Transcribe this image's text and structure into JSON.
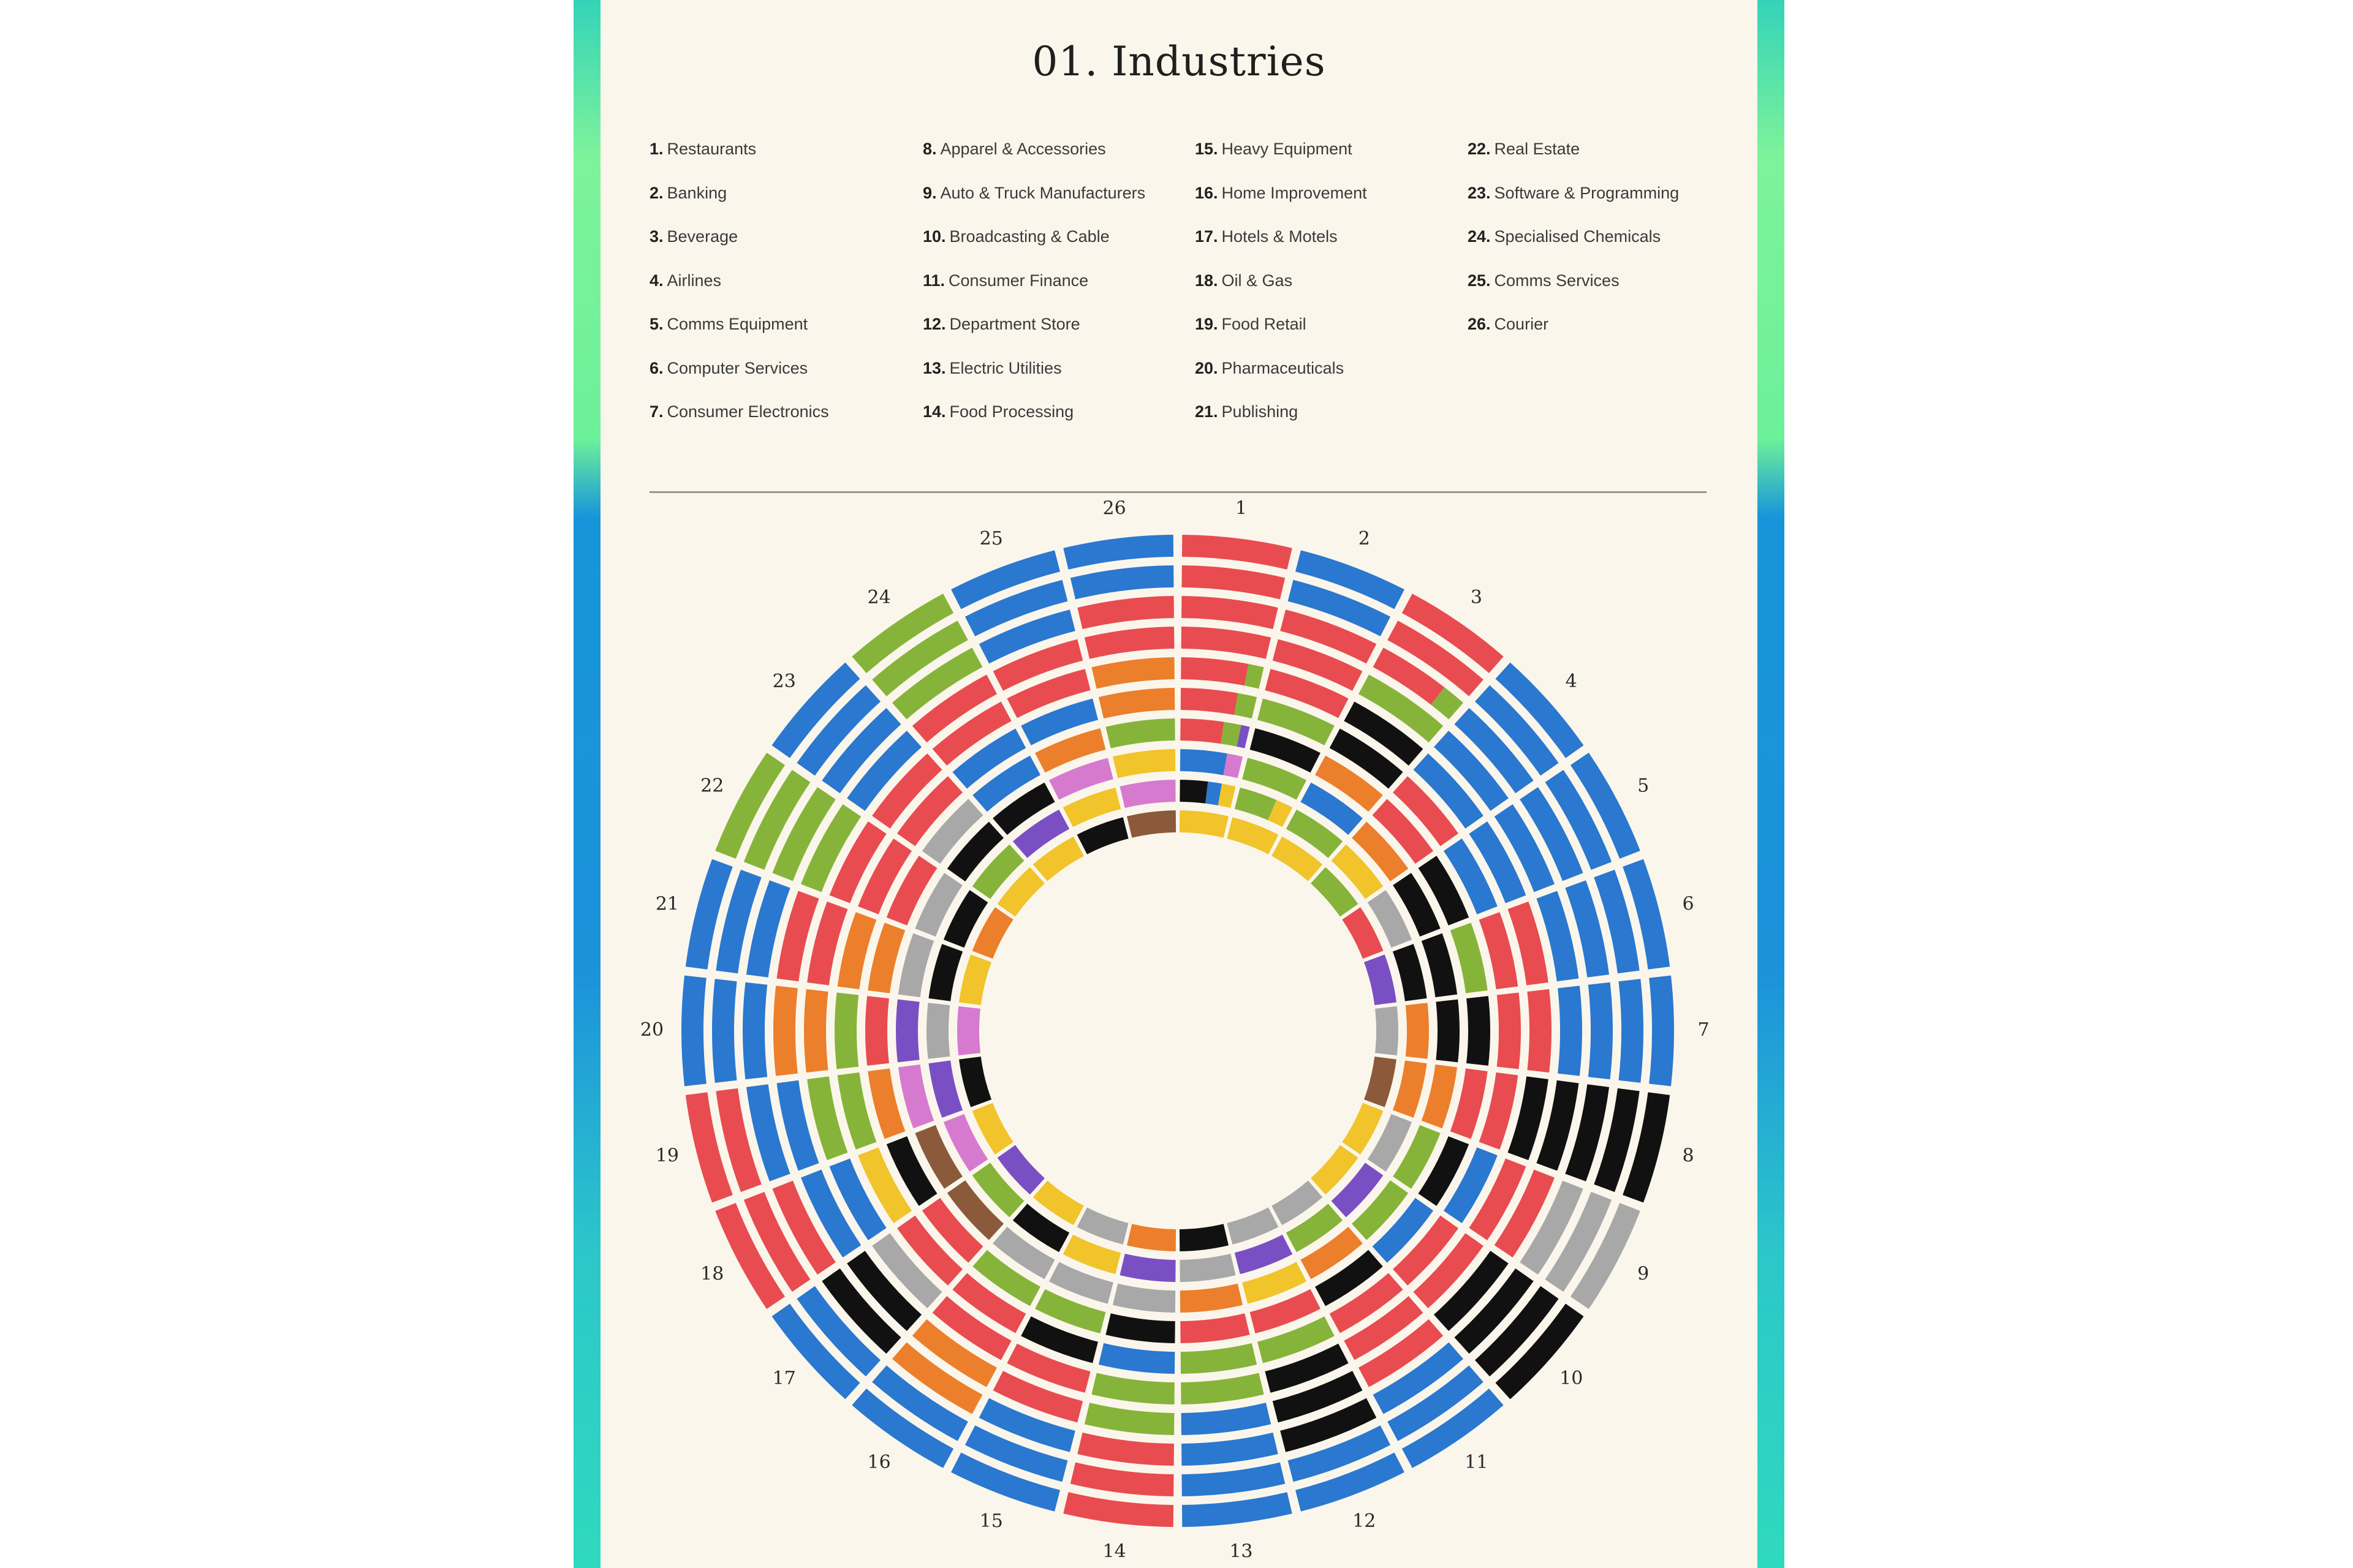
{
  "title": "01. Industries",
  "legend": [
    {
      "num": "1.",
      "label": "Restaurants"
    },
    {
      "num": "2.",
      "label": "Banking"
    },
    {
      "num": "3.",
      "label": "Beverage"
    },
    {
      "num": "4.",
      "label": "Airlines"
    },
    {
      "num": "5.",
      "label": "Comms Equipment"
    },
    {
      "num": "6.",
      "label": "Computer Services"
    },
    {
      "num": "7.",
      "label": "Consumer Electronics"
    },
    {
      "num": "8.",
      "label": "Apparel & Accessories"
    },
    {
      "num": "9.",
      "label": "Auto & Truck Manufacturers"
    },
    {
      "num": "10.",
      "label": "Broadcasting & Cable"
    },
    {
      "num": "11.",
      "label": "Consumer Finance"
    },
    {
      "num": "12.",
      "label": "Department Store"
    },
    {
      "num": "13.",
      "label": "Electric Utilities"
    },
    {
      "num": "14.",
      "label": "Food Processing"
    },
    {
      "num": "15.",
      "label": "Heavy Equipment"
    },
    {
      "num": "16.",
      "label": "Home Improvement"
    },
    {
      "num": "17.",
      "label": "Hotels & Motels"
    },
    {
      "num": "18.",
      "label": "Oil & Gas"
    },
    {
      "num": "19.",
      "label": "Food Retail"
    },
    {
      "num": "20.",
      "label": "Pharmaceuticals"
    },
    {
      "num": "21.",
      "label": "Publishing"
    },
    {
      "num": "22.",
      "label": "Real Estate"
    },
    {
      "num": "23.",
      "label": "Software & Programming"
    },
    {
      "num": "24.",
      "label": "Specialised Chemicals"
    },
    {
      "num": "25.",
      "label": "Comms Services"
    },
    {
      "num": "26.",
      "label": "Courier"
    }
  ],
  "chart_data": {
    "type": "radial-bar",
    "title": "",
    "segment_labels": [
      "1",
      "2",
      "3",
      "4",
      "5",
      "6",
      "7",
      "8",
      "9",
      "10",
      "11",
      "12",
      "13",
      "14",
      "15",
      "16",
      "17",
      "18",
      "19",
      "20",
      "21",
      "22",
      "23",
      "24",
      "25",
      "26"
    ],
    "rings_per_segment": 10,
    "colors": {
      "R": "#e84c50",
      "B": "#2a78cf",
      "G": "#86b43a",
      "O": "#ec7f2b",
      "Y": "#f0c42a",
      "K": "#111111",
      "S": "#a8a8a8",
      "P": "#7a4fc4",
      "M": "#d67ad0",
      "N": "#8b5a3a"
    },
    "segments": [
      {
        "label": "1",
        "rings": [
          "RRRRRRRRRRRRRRRR",
          "RRRRRRRRRRRRRRRR",
          "RRRRRRRRRRRRRRRR",
          "RRRRRRRRRRRRRRRR",
          "RRRRRRRRRRRRRGGG",
          "RRRRRRRRRRRRGGGG",
          "RRRRRRRRRRGGGGPP",
          "BBBBBBBBBBBBMMMM",
          "KKKKKKKKBBBBYYYY",
          "YYYYYYYYYYYYYYYY"
        ]
      },
      {
        "label": "2",
        "rings": [
          "BBBBBBBBBBBBBBBB",
          "BBBBBBBBBBBBBBBB",
          "RRRRRRRRRRRRRRRR",
          "RRRRRRRRRRRRRRRR",
          "RRRRRRRRRRRRRRRR",
          "GGGGGGGGGGGGGGGG",
          "KKKKKKKKKKKKKKKK",
          "GGGGGGGGGGGGGGGG",
          "GGGGGGGGGGGYYYYY",
          "YYYYYYYYYYYYYYYY"
        ]
      },
      {
        "label": "3",
        "rings": [
          "RRRRRRRRRRRRRRRR",
          "RRRRRRRRRRRRRRRR",
          "RRRRRRRRRRRRGGGG",
          "GGGGGGGGGGGGGGGG",
          "KKKKKKKKKKKKKKKK",
          "KKKKKKKKKKKKKKKK",
          "OOOOOOOOOOOOOOOO",
          "BBBBBBBBBBBBBBBB",
          "GGGGGGGGGGGGGGGG",
          "YYYYYYYYYYYYYYYY"
        ]
      },
      {
        "label": "4",
        "rings": [
          "BBBBBBBBBBBBBBBB",
          "BBBBBBBBBBBBBBBB",
          "BBBBBBBBBBBBBBBB",
          "BBBBBBBBBBBBBBBB",
          "BBBBBBBBBBBBBBBB",
          "RRRRRRRRRRRRRRRR",
          "RRRRRRRRRRRRRRRR",
          "OOOOOOOOOOOOOOOO",
          "YYYYYYYYYYYYYYYY",
          "GGGGGGGGGGGGGGGG"
        ]
      },
      {
        "label": "5",
        "rings": [
          "BBBBBBBBBBBBBBBB",
          "BBBBBBBBBBBBBBBB",
          "BBBBBBBBBBBBBBBB",
          "BBBBBBBBBBBBBBBB",
          "BBBBBBBBBBBBBBBB",
          "BBBBBBBBBBBBBBBB",
          "KKKKKKKKKKKKKKKK",
          "KKKKKKKKKKKKKKKK",
          "SSSSSSSSSSSSSSSS",
          "RRRRRRRRRRRRRRRR"
        ]
      },
      {
        "label": "6",
        "rings": [
          "BBBBBBBBBBBBBBBB",
          "BBBBBBBBBBBBBBBB",
          "BBBBBBBBBBBBBBBB",
          "BBBBBBBBBBBBBBBB",
          "RRRRRRRRRRRRRRRR",
          "RRRRRRRRRRRRRRRR",
          "GGGGGGGGGGGGGGGG",
          "KKKKKKKKKKKKKKKK",
          "KKKKKKKKKKKKKKKK",
          "PPPPPPPPPPPPPPPP"
        ]
      },
      {
        "label": "7",
        "rings": [
          "BBBBBBBBBBBBBBBB",
          "BBBBBBBBBBBBBBBB",
          "BBBBBBBBBBBBBBBB",
          "BBBBBBBBBBBBBBBB",
          "RRRRRRRRRRRRRRRR",
          "RRRRRRRRRRRRRRRR",
          "KKKKKKKKKKKKKKKK",
          "KKKKKKKKKKKKKKKK",
          "OOOOOOOOOOOOOOOO",
          "SSSSSSSSSSSSSSSS"
        ]
      },
      {
        "label": "8",
        "rings": [
          "KKKKKKKKKKKKKKKK",
          "KKKKKKKKKKKKKKKK",
          "KKKKKKKKKKKKKKKK",
          "KKKKKKKKKKKKKKKK",
          "KKKKKKKKKKKKKKKK",
          "RRRRRRRRRRRRRRRR",
          "RRRRRRRRRRRRRRRR",
          "OOOOOOOOOOOOOOOO",
          "OOOOOOOOOOOOOOOO",
          "NNNNNNNNNNNNNNNN"
        ]
      },
      {
        "label": "9",
        "rings": [
          "SSSSSSSSSSSSSSSS",
          "SSSSSSSSSSSSSSSS",
          "SSSSSSSSSSSSSSSS",
          "RRRRRRRRRRRRRRRR",
          "RRRRRRRRRRRRRRRR",
          "BBBBBBBBBBBBBBBB",
          "KKKKKKKKKKKKKKKK",
          "GGGGGGGGGGGGGGGG",
          "SSSSSSSSSSSSSSSS",
          "YYYYYYYYYYYYYYYY"
        ]
      },
      {
        "label": "10",
        "rings": [
          "KKKKKKKKKKKKKKKK",
          "KKKKKKKKKKKKKKKK",
          "KKKKKKKKKKKKKKKK",
          "KKKKKKKKKKKKKKKK",
          "RRRRRRRRRRRRRRRR",
          "RRRRRRRRRRRRRRRR",
          "BBBBBBBBBBBBBBBB",
          "GGGGGGGGGGGGGGGG",
          "PPPPPPPPPPPPPPPP",
          "YYYYYYYYYYYYYYYY"
        ]
      },
      {
        "label": "11",
        "rings": [
          "BBBBBBBBBBBBBBBB",
          "BBBBBBBBBBBBBBBB",
          "BBBBBBBBBBBBBBBB",
          "RRRRRRRRRRRRRRRR",
          "RRRRRRRRRRRRRRRR",
          "RRRRRRRRRRRRRRRR",
          "KKKKKKKKKKKKKKKK",
          "OOOOOOOOOOOOOOOO",
          "GGGGGGGGGGGGGGGG",
          "SSSSSSSSSSSSSSSS"
        ]
      },
      {
        "label": "12",
        "rings": [
          "BBBBBBBBBBBBBBBB",
          "BBBBBBBBBBBBBBBB",
          "KKKKKKKKKKKKKKKK",
          "KKKKKKKKKKKKKKKK",
          "KKKKKKKKKKKKKKKK",
          "GGGGGGGGGGGGGGGG",
          "RRRRRRRRRRRRRRRR",
          "YYYYYYYYYYYYYYYY",
          "PPPPPPPPPPPPPPPP",
          "SSSSSSSSSSSSSSSS"
        ]
      },
      {
        "label": "13",
        "rings": [
          "BBBBBBBBBBBBBBBB",
          "BBBBBBBBBBBBBBBB",
          "BBBBBBBBBBBBBBBB",
          "BBBBBBBBBBBBBBBB",
          "GGGGGGGGGGGGGGGG",
          "GGGGGGGGGGGGGGGG",
          "RRRRRRRRRRRRRRRR",
          "OOOOOOOOOOOOOOOO",
          "SSSSSSSSSSSSSSSS",
          "KKKKKKKKKKKKKKKK"
        ]
      },
      {
        "label": "14",
        "rings": [
          "RRRRRRRRRRRRRRRR",
          "RRRRRRRRRRRRRRRR",
          "RRRRRRRRRRRRRRRR",
          "GGGGGGGGGGGGGGGG",
          "GGGGGGGGGGGGGGGG",
          "BBBBBBBBBBBBBBBB",
          "KKKKKKKKKKKKKKKK",
          "SSSSSSSSSSSSSSSS",
          "PPPPPPPPPPPPPPPP",
          "OOOOOOOOOOOOOOOO"
        ]
      },
      {
        "label": "15",
        "rings": [
          "BBBBBBBBBBBBBBBB",
          "BBBBBBBBBBBBBBBB",
          "BBBBBBBBBBBBBBBB",
          "RRRRRRRRRRRRRRRR",
          "RRRRRRRRRRRRRRRR",
          "KKKKKKKKKKKKKKKK",
          "GGGGGGGGGGGGGGGG",
          "SSSSSSSSSSSSSSSS",
          "YYYYYYYYYYYYYYYY",
          "SSSSSSSSSSSSSSSS"
        ]
      },
      {
        "label": "16",
        "rings": [
          "BBBBBBBBBBBBBBBB",
          "BBBBBBBBBBBBBBBB",
          "OOOOOOOOOOOOOOOO",
          "OOOOOOOOOOOOOOOO",
          "RRRRRRRRRRRRRRRR",
          "RRRRRRRRRRRRRRRR",
          "GGGGGGGGGGGGGGGG",
          "SSSSSSSSSSSSSSSS",
          "KKKKKKKKKKKKKKKK",
          "YYYYYYYYYYYYYYYY"
        ]
      },
      {
        "label": "17",
        "rings": [
          "BBBBBBBBBBBBBBBB",
          "BBBBBBBBBBBBBBBB",
          "KKKKKKKKKKKKKKKK",
          "KKKKKKKKKKKKKKKK",
          "SSSSSSSSSSSSSSSS",
          "RRRRRRRRRRRRRRRR",
          "RRRRRRRRRRRRRRRR",
          "NNNNNNNNNNNNNNNN",
          "GGGGGGGGGGGGGGGG",
          "PPPPPPPPPPPPPPPP"
        ]
      },
      {
        "label": "18",
        "rings": [
          "RRRRRRRRRRRRRRRR",
          "RRRRRRRRRRRRRRRR",
          "RRRRRRRRRRRRRRRR",
          "BBBBBBBBBBBBBBBB",
          "BBBBBBBBBBBBBBBB",
          "YYYYYYYYYYYYYYYY",
          "KKKKKKKKKKKKKKKK",
          "NNNNNNNNNNNNNNNN",
          "MMMMMMMMMMMMMMMM",
          "YYYYYYYYYYYYYYYY"
        ]
      },
      {
        "label": "19",
        "rings": [
          "RRRRRRRRRRRRRRRR",
          "RRRRRRRRRRRRRRRR",
          "BBBBBBBBBBBBBBBB",
          "BBBBBBBBBBBBBBBB",
          "GGGGGGGGGGGGGGGG",
          "GGGGGGGGGGGGGGGG",
          "OOOOOOOOOOOOOOOO",
          "MMMMMMMMMMMMMMMM",
          "PPPPPPPPPPPPPPPP",
          "KKKKKKKKKKKKKKKK"
        ]
      },
      {
        "label": "20",
        "rings": [
          "BBBBBBBBBBBBBBBB",
          "BBBBBBBBBBBBBBBB",
          "BBBBBBBBBBBBBBBB",
          "OOOOOOOOOOOOOOOO",
          "OOOOOOOOOOOOOOOO",
          "GGGGGGGGGGGGGGGG",
          "RRRRRRRRRRRRRRRR",
          "PPPPPPPPPPPPPPPP",
          "SSSSSSSSSSSSSSSS",
          "MMMMMMMMMMMMMMMM"
        ]
      },
      {
        "label": "21",
        "rings": [
          "BBBBBBBBBBBBBBBB",
          "BBBBBBBBBBBBBBBB",
          "BBBBBBBBBBBBBBBB",
          "RRRRRRRRRRRRRRRR",
          "RRRRRRRRRRRRRRRR",
          "OOOOOOOOOOOOOOOO",
          "OOOOOOOOOOOOOOOO",
          "SSSSSSSSSSSSSSSS",
          "KKKKKKKKKKKKKKKK",
          "YYYYYYYYYYYYYYYY"
        ]
      },
      {
        "label": "22",
        "rings": [
          "GGGGGGGGGGGGGGGG",
          "GGGGGGGGGGGGGGGG",
          "GGGGGGGGGGGGGGGG",
          "GGGGGGGGGGGGGGGG",
          "RRRRRRRRRRRRRRRR",
          "RRRRRRRRRRRRRRRR",
          "RRRRRRRRRRRRRRRR",
          "SSSSSSSSSSSSSSSS",
          "KKKKKKKKKKKKKKKK",
          "OOOOOOOOOOOOOOOO"
        ]
      },
      {
        "label": "23",
        "rings": [
          "BBBBBBBBBBBBBBBB",
          "BBBBBBBBBBBBBBBB",
          "BBBBBBBBBBBBBBBB",
          "BBBBBBBBBBBBBBBB",
          "RRRRRRRRRRRRRRRR",
          "RRRRRRRRRRRRRRRR",
          "SSSSSSSSSSSSSSSS",
          "KKKKKKKKKKKKKKKK",
          "GGGGGGGGGGGGGGGG",
          "YYYYYYYYYYYYYYYY"
        ]
      },
      {
        "label": "24",
        "rings": [
          "GGGGGGGGGGGGGGGG",
          "GGGGGGGGGGGGGGGG",
          "GGGGGGGGGGGGGGGG",
          "RRRRRRRRRRRRRRRR",
          "RRRRRRRRRRRRRRRR",
          "BBBBBBBBBBBBBBBB",
          "BBBBBBBBBBBBBBBB",
          "KKKKKKKKKKKKKKKK",
          "PPPPPPPPPPPPPPPP",
          "YYYYYYYYYYYYYYYY"
        ]
      },
      {
        "label": "25",
        "rings": [
          "BBBBBBBBBBBBBBBB",
          "BBBBBBBBBBBBBBBB",
          "BBBBBBBBBBBBBBBB",
          "RRRRRRRRRRRRRRRR",
          "RRRRRRRRRRRRRRRR",
          "BBBBBBBBBBBBBBBB",
          "OOOOOOOOOOOOOOOO",
          "MMMMMMMMMMMMMMMM",
          "YYYYYYYYYYYYYYYY",
          "KKKKKKKKKKKKKKKK"
        ]
      },
      {
        "label": "26",
        "rings": [
          "BBBBBBBBBBBBBBBB",
          "BBBBBBBBBBBBBBBB",
          "RRRRRRRRRRRRRRRR",
          "RRRRRRRRRRRRRRRR",
          "OOOOOOOOOOOOOOOO",
          "OOOOOOOOOOOOOOOO",
          "GGGGGGGGGGGGGGGG",
          "YYYYYYYYYYYYYYYY",
          "MMMMMMMMMMMMMMMM",
          "NNNNNNNNNNNNNNNN"
        ]
      }
    ]
  }
}
